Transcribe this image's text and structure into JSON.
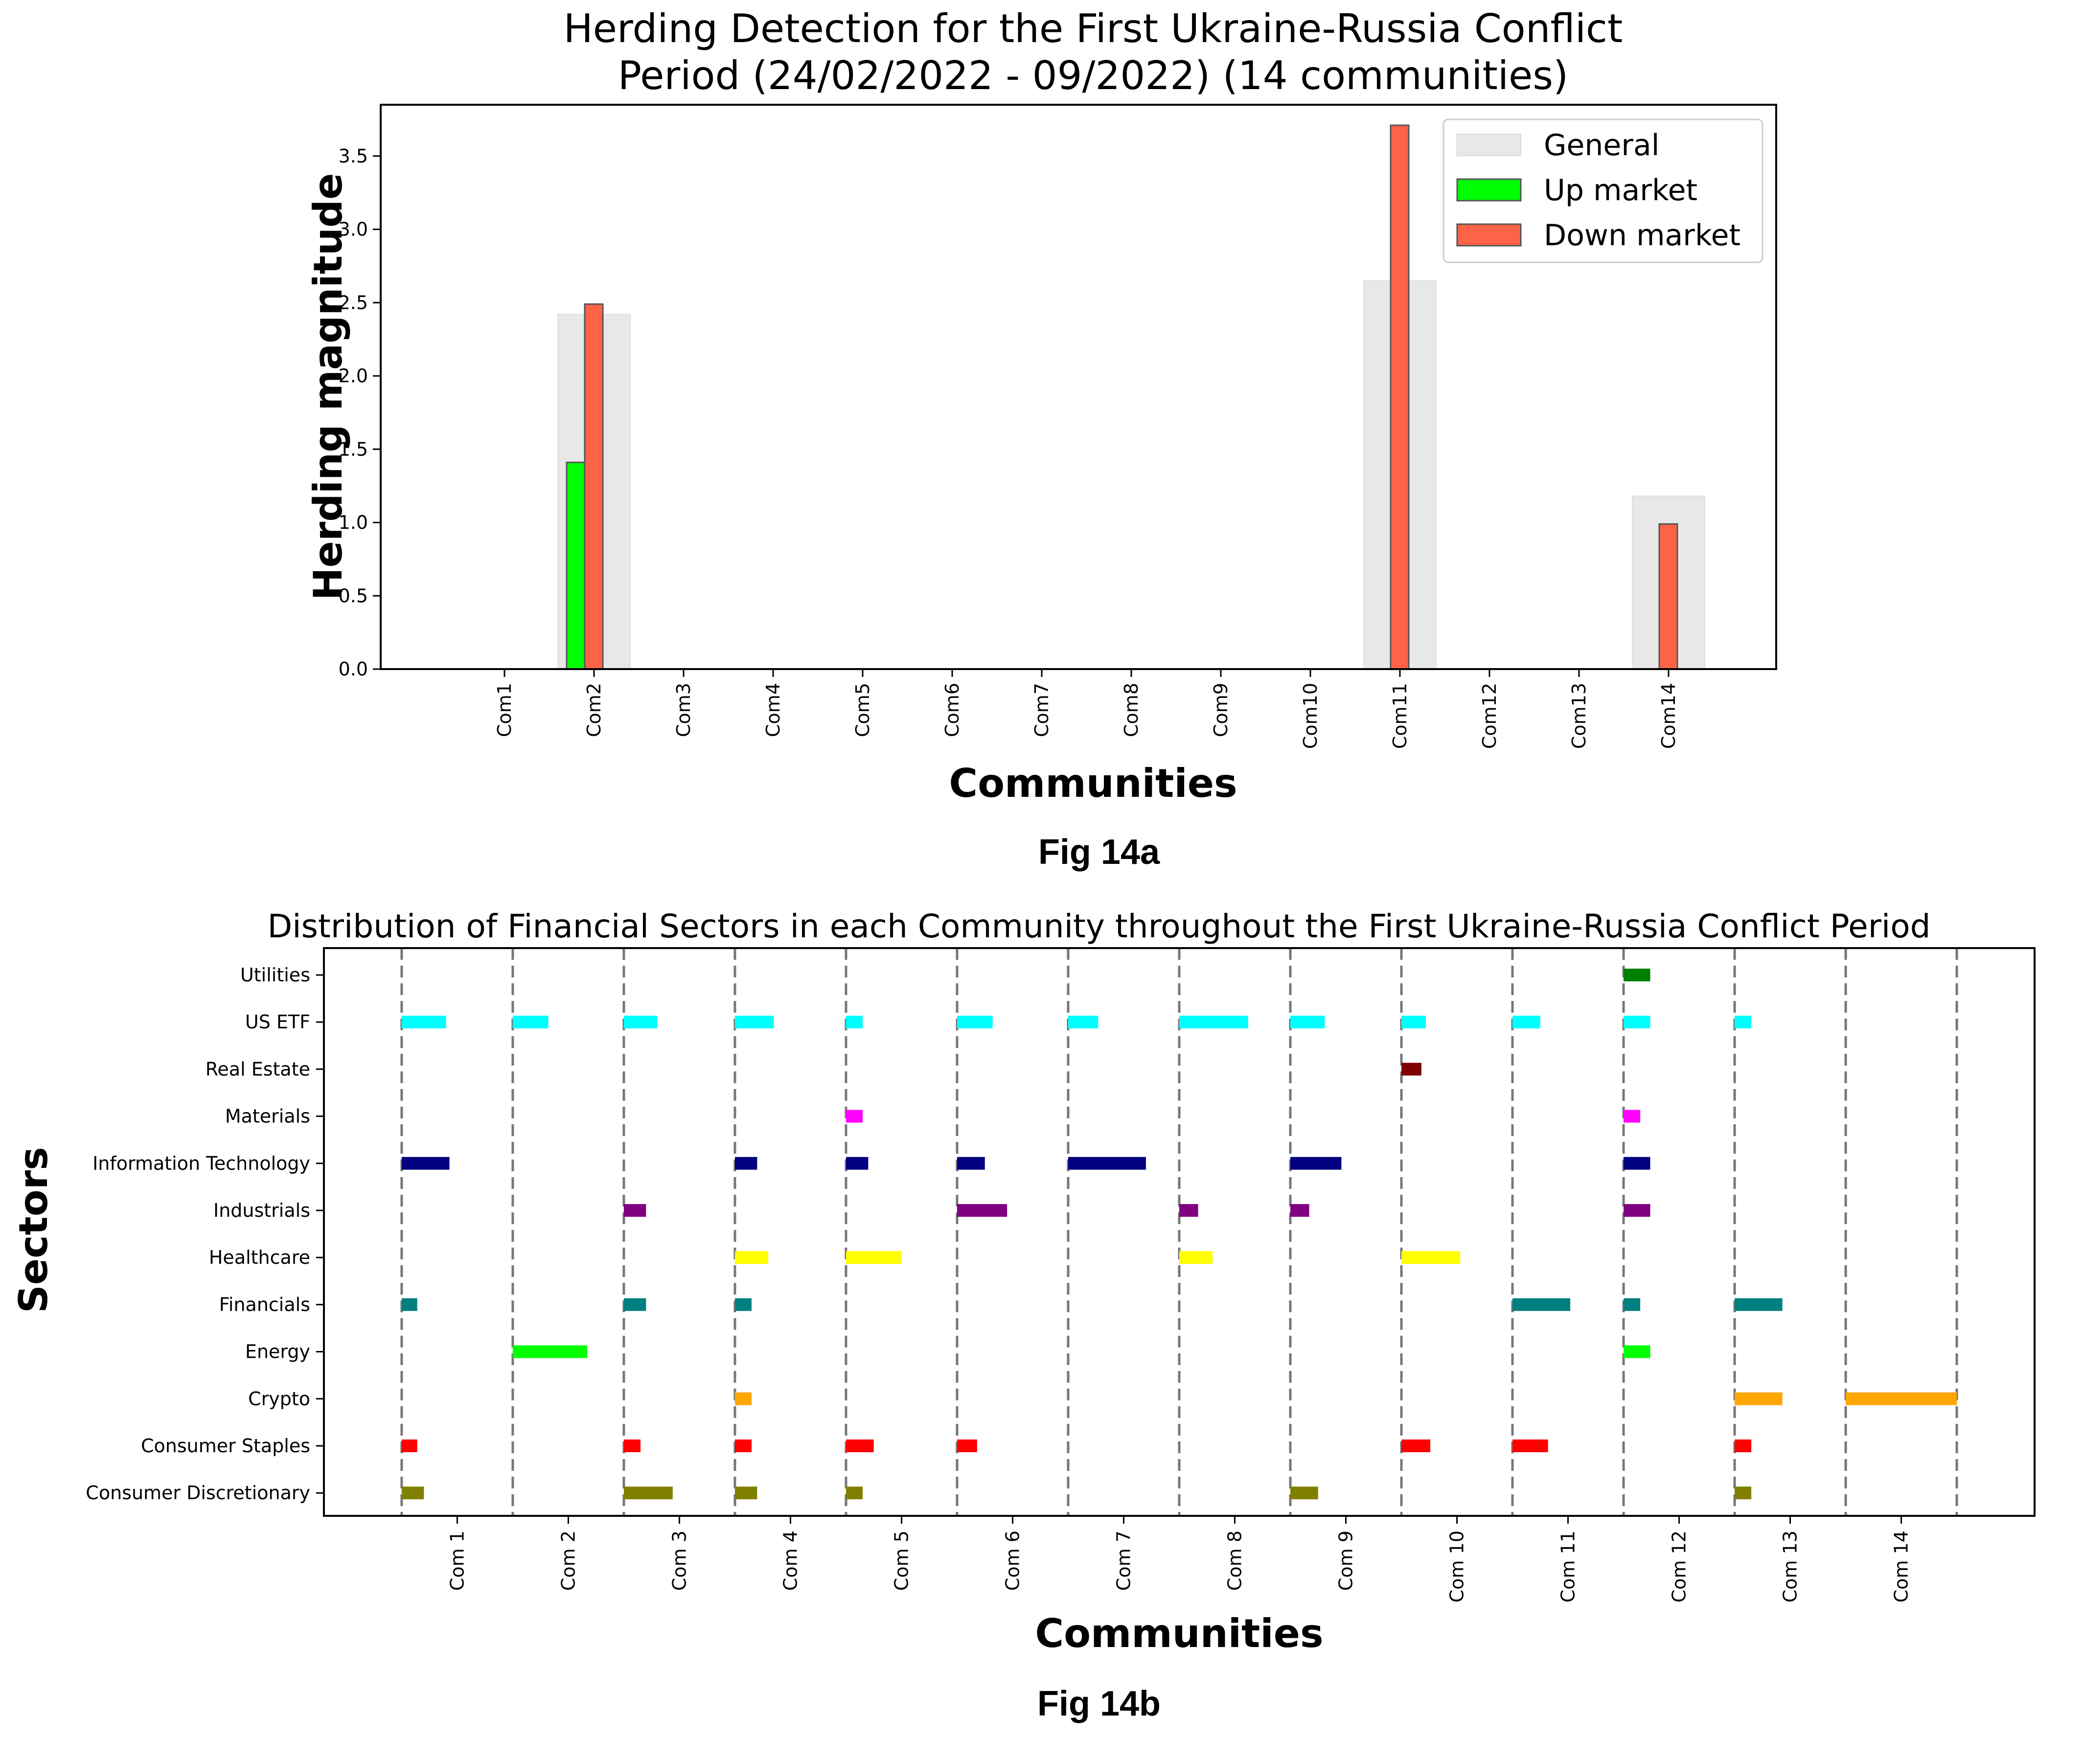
{
  "chart_data": [
    {
      "type": "bar",
      "title": "Herding Detection for the First Ukraine-Russia Conflict\nPeriod (24/02/2022 - 09/2022) (14 communities)",
      "xlabel": "Communities",
      "ylabel": "Herding magnitude",
      "caption": "Fig 14a",
      "categories": [
        "Com1",
        "Com2",
        "Com3",
        "Com4",
        "Com5",
        "Com6",
        "Com7",
        "Com8",
        "Com9",
        "Com10",
        "Com11",
        "Com12",
        "Com13",
        "Com14"
      ],
      "ylim": [
        0,
        3.85
      ],
      "yticks": [
        "0.0",
        "0.5",
        "1.0",
        "1.5",
        "2.0",
        "2.5",
        "3.0",
        "3.5"
      ],
      "legend_position": "top-right",
      "series": [
        {
          "name": "General",
          "color": "#e8e8e8",
          "values": [
            0,
            2.42,
            0,
            0,
            0,
            0,
            0,
            0,
            0,
            0,
            2.65,
            0,
            0,
            1.18
          ]
        },
        {
          "name": "Up market",
          "color": "#00ff00",
          "values": [
            0,
            1.41,
            0,
            0,
            0,
            0,
            0,
            0,
            0,
            0,
            0,
            0,
            0,
            0
          ]
        },
        {
          "name": "Down market",
          "color": "#ff6347",
          "values": [
            0,
            2.49,
            0,
            0,
            0,
            0,
            0,
            0,
            0,
            0,
            3.71,
            0,
            0,
            0.99
          ]
        }
      ]
    },
    {
      "type": "bar",
      "orientation": "horizontal",
      "title": "Distribution of Financial Sectors in each Community throughout the First Ukraine-Russia Conflict Period",
      "xlabel": "Communities",
      "ylabel": "Sectors",
      "caption": "Fig 14b",
      "communities": [
        "Com 1",
        "Com 2",
        "Com 3",
        "Com 4",
        "Com 5",
        "Com 6",
        "Com 7",
        "Com 8",
        "Com 9",
        "Com 10",
        "Com 11",
        "Com 12",
        "Com 13",
        "Com 14"
      ],
      "sectors": [
        "Utilities",
        "US ETF",
        "Real Estate",
        "Materials",
        "Information Technology",
        "Industrials",
        "Healthcare",
        "Financials",
        "Energy",
        "Crypto",
        "Consumer Staples",
        "Consumer Discretionary"
      ],
      "sector_colors": {
        "Utilities": "#008000",
        "US ETF": "#00ffff",
        "Real Estate": "#800000",
        "Materials": "#ff00ff",
        "Information Technology": "#000080",
        "Industrials": "#800080",
        "Healthcare": "#ffff00",
        "Financials": "#008080",
        "Energy": "#00ff00",
        "Crypto": "#ffa500",
        "Consumer Staples": "#ff0000",
        "Consumer Discretionary": "#808000"
      },
      "xlim": [
        -0.2,
        15.2
      ],
      "bars": [
        {
          "community": 1,
          "sector": "US ETF",
          "value": 0.4
        },
        {
          "community": 1,
          "sector": "Information Technology",
          "value": 0.43
        },
        {
          "community": 1,
          "sector": "Financials",
          "value": 0.14
        },
        {
          "community": 1,
          "sector": "Consumer Staples",
          "value": 0.14
        },
        {
          "community": 1,
          "sector": "Consumer Discretionary",
          "value": 0.2
        },
        {
          "community": 2,
          "sector": "US ETF",
          "value": 0.32
        },
        {
          "community": 2,
          "sector": "Energy",
          "value": 0.67
        },
        {
          "community": 3,
          "sector": "US ETF",
          "value": 0.3
        },
        {
          "community": 3,
          "sector": "Industrials",
          "value": 0.2
        },
        {
          "community": 3,
          "sector": "Financials",
          "value": 0.2
        },
        {
          "community": 3,
          "sector": "Consumer Staples",
          "value": 0.15
        },
        {
          "community": 3,
          "sector": "Consumer Discretionary",
          "value": 0.44
        },
        {
          "community": 4,
          "sector": "US ETF",
          "value": 0.35
        },
        {
          "community": 4,
          "sector": "Information Technology",
          "value": 0.2
        },
        {
          "community": 4,
          "sector": "Healthcare",
          "value": 0.3
        },
        {
          "community": 4,
          "sector": "Financials",
          "value": 0.15
        },
        {
          "community": 4,
          "sector": "Crypto",
          "value": 0.15
        },
        {
          "community": 4,
          "sector": "Consumer Staples",
          "value": 0.15
        },
        {
          "community": 4,
          "sector": "Consumer Discretionary",
          "value": 0.2
        },
        {
          "community": 5,
          "sector": "US ETF",
          "value": 0.15
        },
        {
          "community": 5,
          "sector": "Materials",
          "value": 0.15
        },
        {
          "community": 5,
          "sector": "Information Technology",
          "value": 0.2
        },
        {
          "community": 5,
          "sector": "Healthcare",
          "value": 0.5
        },
        {
          "community": 5,
          "sector": "Consumer Staples",
          "value": 0.25
        },
        {
          "community": 5,
          "sector": "Consumer Discretionary",
          "value": 0.15
        },
        {
          "community": 6,
          "sector": "US ETF",
          "value": 0.32
        },
        {
          "community": 6,
          "sector": "Information Technology",
          "value": 0.25
        },
        {
          "community": 6,
          "sector": "Industrials",
          "value": 0.45
        },
        {
          "community": 6,
          "sector": "Consumer Staples",
          "value": 0.18
        },
        {
          "community": 7,
          "sector": "US ETF",
          "value": 0.27
        },
        {
          "community": 7,
          "sector": "Information Technology",
          "value": 0.7
        },
        {
          "community": 8,
          "sector": "US ETF",
          "value": 0.62
        },
        {
          "community": 8,
          "sector": "Industrials",
          "value": 0.17
        },
        {
          "community": 8,
          "sector": "Healthcare",
          "value": 0.3
        },
        {
          "community": 9,
          "sector": "US ETF",
          "value": 0.31
        },
        {
          "community": 9,
          "sector": "Information Technology",
          "value": 0.46
        },
        {
          "community": 9,
          "sector": "Industrials",
          "value": 0.17
        },
        {
          "community": 9,
          "sector": "Consumer Discretionary",
          "value": 0.25
        },
        {
          "community": 10,
          "sector": "US ETF",
          "value": 0.22
        },
        {
          "community": 10,
          "sector": "Real Estate",
          "value": 0.18
        },
        {
          "community": 10,
          "sector": "Healthcare",
          "value": 0.53
        },
        {
          "community": 10,
          "sector": "Consumer Staples",
          "value": 0.26
        },
        {
          "community": 11,
          "sector": "US ETF",
          "value": 0.25
        },
        {
          "community": 11,
          "sector": "Financials",
          "value": 0.52
        },
        {
          "community": 11,
          "sector": "Consumer Staples",
          "value": 0.32
        },
        {
          "community": 12,
          "sector": "Utilities",
          "value": 0.24
        },
        {
          "community": 12,
          "sector": "US ETF",
          "value": 0.24
        },
        {
          "community": 12,
          "sector": "Materials",
          "value": 0.15
        },
        {
          "community": 12,
          "sector": "Information Technology",
          "value": 0.24
        },
        {
          "community": 12,
          "sector": "Industrials",
          "value": 0.24
        },
        {
          "community": 12,
          "sector": "Financials",
          "value": 0.15
        },
        {
          "community": 12,
          "sector": "Energy",
          "value": 0.24
        },
        {
          "community": 13,
          "sector": "US ETF",
          "value": 0.15
        },
        {
          "community": 13,
          "sector": "Financials",
          "value": 0.43
        },
        {
          "community": 13,
          "sector": "Crypto",
          "value": 0.43
        },
        {
          "community": 13,
          "sector": "Consumer Staples",
          "value": 0.15
        },
        {
          "community": 13,
          "sector": "Consumer Discretionary",
          "value": 0.15
        },
        {
          "community": 14,
          "sector": "Crypto",
          "value": 1.0
        }
      ]
    }
  ]
}
